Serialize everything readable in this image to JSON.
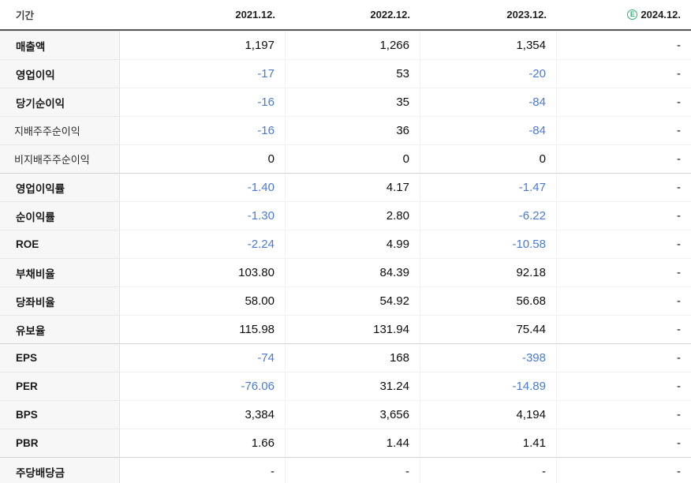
{
  "header": {
    "period_label": "기간",
    "columns": [
      "2021.12.",
      "2022.12.",
      "2023.12.",
      "2024.12."
    ],
    "estimate_badge": {
      "letter": "E",
      "icon": "circled-E-estimate-icon",
      "color": "#2eae74",
      "applies_to_column": "2024.12."
    }
  },
  "chart_data": {
    "type": "table",
    "columns": [
      "기간",
      "2021.12.",
      "2022.12.",
      "2023.12.",
      "2024.12.(E)"
    ],
    "rows": [
      {
        "label": "매출액",
        "style": "main",
        "section_start": false,
        "values": [
          "1,197",
          "1,266",
          "1,354",
          "-"
        ]
      },
      {
        "label": "영업이익",
        "style": "main",
        "section_start": false,
        "values": [
          "-17",
          "53",
          "-20",
          "-"
        ]
      },
      {
        "label": "당기순이익",
        "style": "main",
        "section_start": false,
        "values": [
          "-16",
          "35",
          "-84",
          "-"
        ]
      },
      {
        "label": "지배주주순이익",
        "style": "sub",
        "section_start": false,
        "values": [
          "-16",
          "36",
          "-84",
          "-"
        ]
      },
      {
        "label": "비지배주주순이익",
        "style": "sub",
        "section_start": false,
        "values": [
          "0",
          "0",
          "0",
          "-"
        ]
      },
      {
        "label": "영업이익률",
        "style": "main",
        "section_start": true,
        "values": [
          "-1.40",
          "4.17",
          "-1.47",
          "-"
        ]
      },
      {
        "label": "순이익률",
        "style": "main",
        "section_start": false,
        "values": [
          "-1.30",
          "2.80",
          "-6.22",
          "-"
        ]
      },
      {
        "label": "ROE",
        "style": "main",
        "section_start": false,
        "values": [
          "-2.24",
          "4.99",
          "-10.58",
          "-"
        ]
      },
      {
        "label": "부채비율",
        "style": "main",
        "section_start": false,
        "values": [
          "103.80",
          "84.39",
          "92.18",
          "-"
        ]
      },
      {
        "label": "당좌비율",
        "style": "main",
        "section_start": false,
        "values": [
          "58.00",
          "54.92",
          "56.68",
          "-"
        ]
      },
      {
        "label": "유보율",
        "style": "main",
        "section_start": false,
        "values": [
          "115.98",
          "131.94",
          "75.44",
          "-"
        ]
      },
      {
        "label": "EPS",
        "style": "main",
        "section_start": true,
        "values": [
          "-74",
          "168",
          "-398",
          "-"
        ]
      },
      {
        "label": "PER",
        "style": "main",
        "section_start": false,
        "values": [
          "-76.06",
          "31.24",
          "-14.89",
          "-"
        ]
      },
      {
        "label": "BPS",
        "style": "main",
        "section_start": false,
        "values": [
          "3,384",
          "3,656",
          "4,194",
          "-"
        ]
      },
      {
        "label": "PBR",
        "style": "main",
        "section_start": false,
        "values": [
          "1.66",
          "1.44",
          "1.41",
          "-"
        ]
      },
      {
        "label": "주당배당금",
        "style": "main",
        "section_start": true,
        "values": [
          "-",
          "-",
          "-",
          "-"
        ]
      }
    ]
  },
  "colors": {
    "negative_value": "#4a7ad8",
    "default_value": "#0d0d0d",
    "estimate_green": "#2eae74",
    "label_column_bg": "#f7f7f7",
    "header_bottom_border": "#565656",
    "section_divider": "#d2d2d2"
  }
}
